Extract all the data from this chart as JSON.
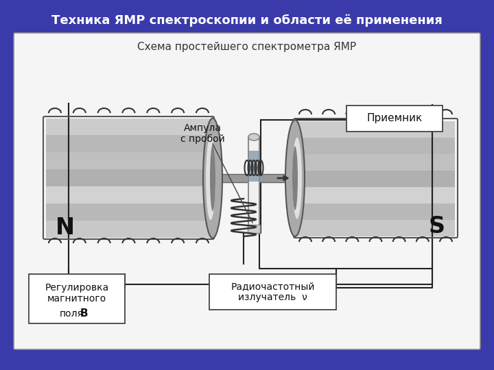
{
  "title1": "Техника ЯМР спектроскопии и области её применения",
  "title2": "Схема простейшего спектрометра ЯМР",
  "bg_color": "#3a3aaa",
  "label_ampula": "Ампула\nс пробой",
  "label_receiver": "Приемник",
  "label_radio": "Радиочастотный\nизлучатель  ν",
  "label_regul": "Регулировка\nмагнитного\nполя B",
  "label_N": "N",
  "label_S": "S",
  "title1_fontsize": 13,
  "title2_fontsize": 11
}
